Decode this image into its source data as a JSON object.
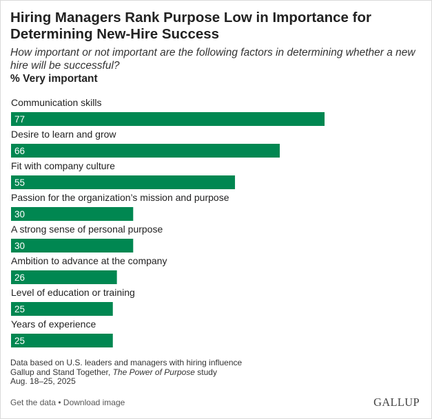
{
  "title": "Hiring Managers Rank Purpose Low in Importance for Determining New-Hire Success",
  "subtitle": "How important or not important are the following factors in determining whether a new hire will be successful?",
  "unit_label": "% Very important",
  "chart_data": {
    "type": "bar",
    "orientation": "horizontal",
    "title": "Hiring Managers Rank Purpose Low in Importance for Determining New-Hire Success",
    "categories": [
      "Communication skills",
      "Desire to learn and grow",
      "Fit with company culture",
      "Passion for the organization’s mission and purpose",
      "A strong sense of personal purpose",
      "Ambition to advance at the company",
      "Level of education or training",
      "Years of experience"
    ],
    "values": [
      77,
      66,
      55,
      30,
      30,
      26,
      25,
      25
    ],
    "xlabel": "",
    "ylabel": "",
    "xlim": [
      0,
      100
    ],
    "grid": false,
    "bar_color": "#008751",
    "label_color": "#ffffff"
  },
  "notes": {
    "line1": "Data based on U.S. leaders and managers with hiring influence",
    "line2_prefix": "Gallup and Stand Together, ",
    "line2_italic": "The Power of Purpose",
    "line2_suffix": " study",
    "line3": "Aug. 18–25, 2025"
  },
  "footer": {
    "get_data": "Get the data",
    "separator": " • ",
    "download": "Download image"
  },
  "logo_text": "GALLUP"
}
